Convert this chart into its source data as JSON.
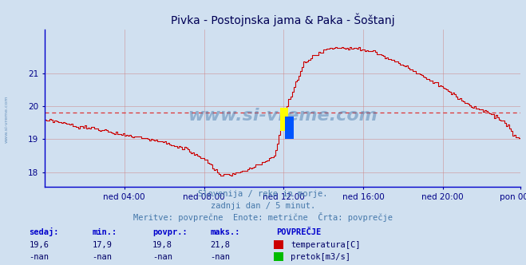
{
  "title": "Pivka - Postojnska jama & Paka - Šoštanj",
  "bg_color": "#d0e0f0",
  "plot_bg_color": "#d0e0f0",
  "line_color": "#cc0000",
  "avg_line_color": "#dd3333",
  "avg_line_value": 19.82,
  "ylim": [
    17.55,
    22.35
  ],
  "yticks": [
    18,
    19,
    20,
    21
  ],
  "xlabel_ticks": [
    "ned 04:00",
    "ned 08:00",
    "ned 12:00",
    "ned 16:00",
    "ned 20:00",
    "pon 00:00"
  ],
  "x_tick_positions": [
    48,
    96,
    144,
    192,
    240,
    287
  ],
  "total_points": 288,
  "subtitle1": "Slovenija / reke in morje.",
  "subtitle2": "zadnji dan / 5 minut.",
  "subtitle3": "Meritve: povprečne  Enote: metrične  Črta: povprečje",
  "table_headers": [
    "sedaj:",
    "min.:",
    "povpr.:",
    "maks.:"
  ],
  "table_row1": [
    "19,6",
    "17,9",
    "19,8",
    "21,8"
  ],
  "table_row2": [
    "-nan",
    "-nan",
    "-nan",
    "-nan"
  ],
  "legend_label1": "temperatura[C]",
  "legend_label2": "pretok[m3/s]",
  "legend_color1": "#cc0000",
  "legend_color2": "#00bb00",
  "watermark": "www.si-vreme.com",
  "watermark_color": "#4477aa",
  "title_color": "#000055",
  "left_spine_color": "#0000cc",
  "bottom_spine_color": "#0000cc",
  "tick_label_color": "#000088",
  "subtitle_color": "#4477aa",
  "table_header_color": "#0000cc",
  "table_data_color": "#000066",
  "grid_color": "#cc8888",
  "grid_alpha": 0.7,
  "povprecje_label": "POVPREČJE"
}
